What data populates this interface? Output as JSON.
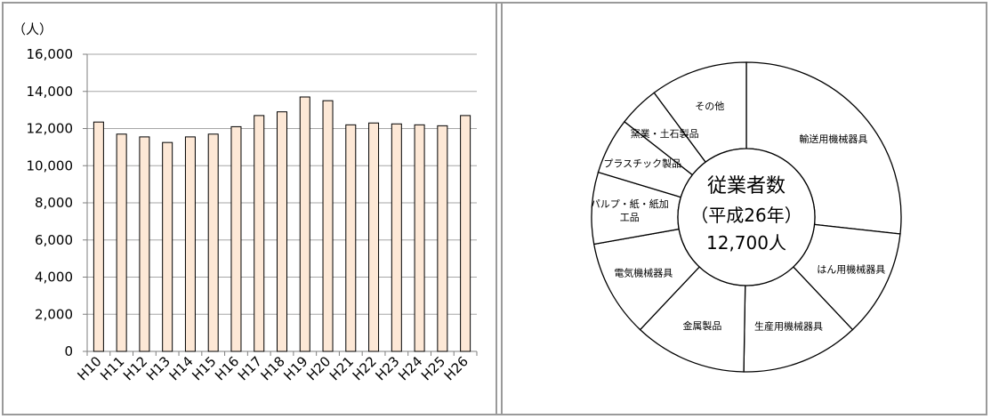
{
  "colors": {
    "bar_fill": "#FDE8D6",
    "bar_stroke": "#000000",
    "grid": "#A6A6A6",
    "frame": "#9A9A9A"
  },
  "chart_data": [
    {
      "type": "bar",
      "unit_label": "（人）",
      "categories": [
        "H10",
        "H11",
        "H12",
        "H13",
        "H14",
        "H15",
        "H16",
        "H17",
        "H18",
        "H19",
        "H20",
        "H21",
        "H22",
        "H23",
        "H24",
        "H25",
        "H26"
      ],
      "values": [
        12350,
        11700,
        11550,
        11250,
        11550,
        11700,
        12100,
        12700,
        12900,
        13700,
        13500,
        12200,
        12300,
        12250,
        12200,
        12150,
        12700
      ],
      "ylim": [
        0,
        16000
      ],
      "yticks": [
        0,
        2000,
        4000,
        6000,
        8000,
        10000,
        12000,
        14000,
        16000
      ],
      "ytick_labels": [
        "0",
        "2,000",
        "4,000",
        "6,000",
        "8,000",
        "10,000",
        "12,000",
        "14,000",
        "16,000"
      ],
      "grid": true
    },
    {
      "type": "pie",
      "donut": true,
      "center_text": [
        "従業者数",
        "（平成26年）",
        "12,700人"
      ],
      "categories": [
        "輸送用機械器具",
        "はん用機械器具",
        "生産用機械器具",
        "金属製品",
        "電気機械器具",
        "パルプ・紙・紙加工品",
        "プラスチック製品",
        "窯業・土石製品",
        "その他"
      ],
      "category_labels": [
        [
          "輸送用機械器具"
        ],
        [
          "はん用機械器具"
        ],
        [
          "生産用機械器具"
        ],
        [
          "金属製品"
        ],
        [
          "電気機械器具"
        ],
        [
          "パルプ・紙・紙加",
          "工品"
        ],
        [
          "プラスチック製品"
        ],
        [
          "窯業・土石製品"
        ],
        [
          "その他"
        ]
      ],
      "values": [
        25.0,
        10.5,
        11.5,
        11.0,
        9.5,
        7.0,
        5.5,
        4.0,
        9.5
      ]
    }
  ]
}
